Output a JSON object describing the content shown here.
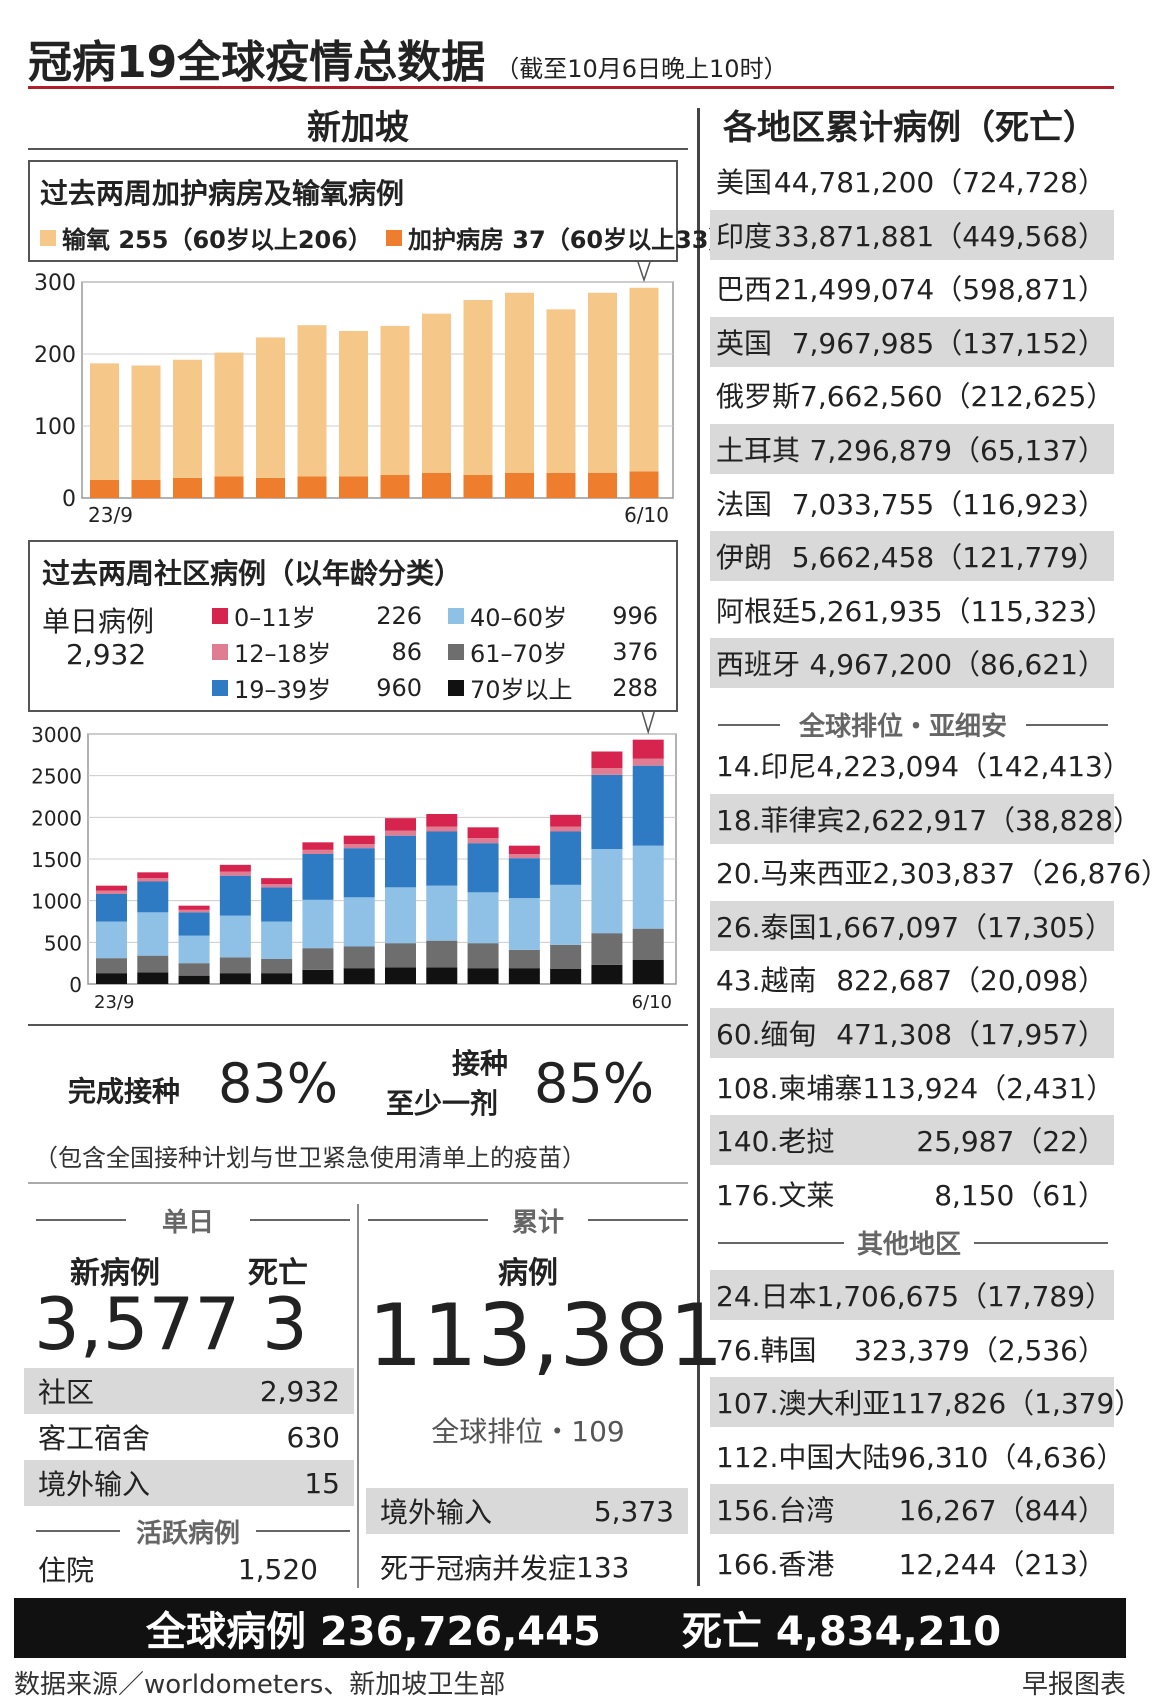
{
  "header": {
    "title": "冠病19全球疫情总数据",
    "subtitle": "（截至10月6日晚上10时）"
  },
  "singapore": {
    "heading": "新加坡",
    "vax_complete_label": "完成接种",
    "vax_complete_value": "83%",
    "vax_one_label_1": "接种",
    "vax_one_label_2": "至少一剂",
    "vax_one_value": "85%",
    "vax_note": "（包含全国接种计划与世卫紧急使用清单上的疫苗）",
    "daily": {
      "heading": "单日",
      "new_label": "新病例",
      "death_label": "死亡",
      "new_value": "3,577",
      "death_value": "3",
      "rows": [
        {
          "label": "社区",
          "value": "2,932"
        },
        {
          "label": "客工宿舍",
          "value": "630"
        },
        {
          "label": "境外输入",
          "value": "15"
        }
      ],
      "active_heading": "活跃病例",
      "hospital_label": "住院",
      "hospital_value": "1,520"
    },
    "cumulative": {
      "heading": "累计",
      "cases_label": "病例",
      "cases_value": "113,381",
      "rank": "全球排位・109",
      "imported_label": "境外输入",
      "imported_value": "5,373",
      "deaths_label": "死于冠病并发症",
      "deaths_value": "133"
    }
  },
  "icu": {
    "box_title": "过去两周加护病房及输氧病例",
    "legend_oxygen": "输氧 255（60岁以上206）",
    "legend_icu": "加护病房 37（60岁以上33）"
  },
  "community": {
    "box_title": "过去两周社区病例（以年龄分类）",
    "daily_label": "单日病例",
    "daily_value": "2,932",
    "legend": [
      {
        "label": "0–11岁",
        "value": "226",
        "color": "#d6244e"
      },
      {
        "label": "12–18岁",
        "value": "86",
        "color": "#e07d93"
      },
      {
        "label": "19–39岁",
        "value": "960",
        "color": "#2e7bc4"
      },
      {
        "label": "40–60岁",
        "value": "996",
        "color": "#8fc1e6"
      },
      {
        "label": "61–70岁",
        "value": "376",
        "color": "#6e6e6e"
      },
      {
        "label": "70岁以上",
        "value": "288",
        "color": "#111111"
      }
    ]
  },
  "regions": {
    "heading": "各地区累计病例（死亡）",
    "top": [
      {
        "name": "美国",
        "value": "44,781,200（724,728）"
      },
      {
        "name": "印度",
        "value": "33,871,881（449,568）"
      },
      {
        "name": "巴西",
        "value": "21,499,074（598,871）"
      },
      {
        "name": "英国",
        "value": "7,967,985（137,152）"
      },
      {
        "name": "俄罗斯",
        "value": "7,662,560（212,625）"
      },
      {
        "name": "土耳其",
        "value": "7,296,879（65,137）"
      },
      {
        "name": "法国",
        "value": "7,033,755（116,923）"
      },
      {
        "name": "伊朗",
        "value": "5,662,458（121,779）"
      },
      {
        "name": "阿根廷",
        "value": "5,261,935（115,323）"
      },
      {
        "name": "西班牙",
        "value": "4,967,200（86,621）"
      }
    ],
    "asean_heading": "全球排位・亚细安",
    "asean": [
      {
        "name": "14.印尼",
        "value": "4,223,094（142,413）"
      },
      {
        "name": "18.菲律宾",
        "value": "2,622,917（38,828）"
      },
      {
        "name": "20.马来西亚",
        "value": "2,303,837（26,876）"
      },
      {
        "name": "26.泰国",
        "value": "1,667,097（17,305）"
      },
      {
        "name": "43.越南",
        "value": "822,687（20,098）"
      },
      {
        "name": "60.缅甸",
        "value": "471,308（17,957）"
      },
      {
        "name": "108.柬埔寨",
        "value": "113,924（2,431）"
      },
      {
        "name": "140.老挝",
        "value": "25,987（22）"
      },
      {
        "name": "176.文莱",
        "value": "8,150（61）"
      }
    ],
    "other_heading": "其他地区",
    "other": [
      {
        "name": "24.日本",
        "value": "1,706,675（17,789）"
      },
      {
        "name": "76.韩国",
        "value": "323,379（2,536）"
      },
      {
        "name": "107.澳大利亚",
        "value": "117,826（1,379）"
      },
      {
        "name": "112.中国大陆",
        "value": "96,310（4,636）"
      },
      {
        "name": "156.台湾",
        "value": "16,267（844）"
      },
      {
        "name": "166.香港",
        "value": "12,244（213）"
      }
    ]
  },
  "footer": {
    "global_cases": "全球病例 236,726,445",
    "global_deaths": "死亡 4,834,210",
    "source": "数据来源／worldometers、新加坡卫生部",
    "credit": "早报图表"
  },
  "chart_data": [
    {
      "type": "bar",
      "stacked": true,
      "title": "过去两周加护病房及输氧病例",
      "x_start_label": "23/9",
      "x_end_label": "6/10",
      "ylim": [
        0,
        300
      ],
      "yticks": [
        0,
        100,
        200,
        300
      ],
      "colors": {
        "oxygen": "#f5c88a",
        "icu": "#ee7d2d"
      },
      "series": [
        {
          "name": "加护病房",
          "values": [
            25,
            25,
            28,
            30,
            28,
            30,
            30,
            32,
            35,
            32,
            35,
            35,
            35,
            37
          ]
        },
        {
          "name": "输氧",
          "values": [
            162,
            159,
            164,
            172,
            195,
            210,
            202,
            207,
            221,
            243,
            250,
            227,
            250,
            255
          ]
        }
      ]
    },
    {
      "type": "bar",
      "stacked": true,
      "title": "过去两周社区病例（以年龄分类）",
      "x_start_label": "23/9",
      "x_end_label": "6/10",
      "ylim": [
        0,
        3000
      ],
      "yticks": [
        0,
        500,
        1000,
        1500,
        2000,
        2500,
        3000
      ],
      "series": [
        {
          "name": "70岁以上",
          "color": "#111111",
          "values": [
            130,
            140,
            100,
            130,
            130,
            170,
            190,
            200,
            200,
            190,
            190,
            180,
            230,
            288
          ]
        },
        {
          "name": "61–70岁",
          "color": "#6e6e6e",
          "values": [
            180,
            200,
            150,
            190,
            170,
            260,
            260,
            290,
            320,
            300,
            220,
            290,
            380,
            376
          ]
        },
        {
          "name": "40–60岁",
          "color": "#8fc1e6",
          "values": [
            440,
            520,
            330,
            500,
            450,
            580,
            590,
            670,
            660,
            610,
            620,
            720,
            1010,
            996
          ]
        },
        {
          "name": "19–39岁",
          "color": "#2e7bc4",
          "values": [
            330,
            370,
            280,
            480,
            410,
            550,
            590,
            620,
            650,
            590,
            480,
            640,
            890,
            960
          ]
        },
        {
          "name": "12–18岁",
          "color": "#e07d93",
          "values": [
            40,
            40,
            30,
            50,
            40,
            50,
            50,
            60,
            60,
            60,
            50,
            60,
            80,
            86
          ]
        },
        {
          "name": "0–11岁",
          "color": "#d6244e",
          "values": [
            60,
            70,
            50,
            80,
            70,
            90,
            100,
            150,
            150,
            130,
            100,
            140,
            200,
            226
          ]
        }
      ]
    }
  ]
}
